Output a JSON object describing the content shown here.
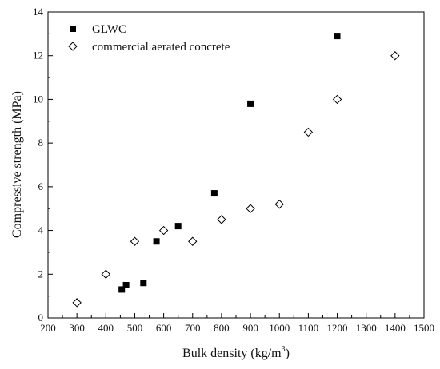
{
  "chart_data": {
    "type": "scatter",
    "xlabel_main": "Bulk density (kg/m",
    "xlabel_sup": "3",
    "xlabel_end": ")",
    "ylabel": "Compressive strength (MPa)",
    "xlim": [
      200,
      1500
    ],
    "ylim": [
      0,
      14
    ],
    "xticks": [
      200,
      300,
      400,
      500,
      600,
      700,
      800,
      900,
      1000,
      1100,
      1200,
      1300,
      1400,
      1500
    ],
    "yticks": [
      0,
      2,
      4,
      6,
      8,
      10,
      12,
      14
    ],
    "legend_position": "top-left",
    "grid": false,
    "series": [
      {
        "name": "GLWC",
        "marker": "filled-square",
        "color": "#000000",
        "points": [
          {
            "x": 455,
            "y": 1.3
          },
          {
            "x": 470,
            "y": 1.5
          },
          {
            "x": 530,
            "y": 1.6
          },
          {
            "x": 575,
            "y": 3.5
          },
          {
            "x": 650,
            "y": 4.2
          },
          {
            "x": 775,
            "y": 5.7
          },
          {
            "x": 900,
            "y": 9.8
          },
          {
            "x": 1200,
            "y": 12.9
          }
        ]
      },
      {
        "name": "commercial aerated concrete",
        "marker": "open-diamond",
        "color": "#000000",
        "points": [
          {
            "x": 300,
            "y": 0.7
          },
          {
            "x": 400,
            "y": 2.0
          },
          {
            "x": 500,
            "y": 3.5
          },
          {
            "x": 600,
            "y": 4.0
          },
          {
            "x": 700,
            "y": 3.5
          },
          {
            "x": 800,
            "y": 4.5
          },
          {
            "x": 900,
            "y": 5.0
          },
          {
            "x": 1000,
            "y": 5.2
          },
          {
            "x": 1100,
            "y": 8.5
          },
          {
            "x": 1200,
            "y": 10.0
          },
          {
            "x": 1400,
            "y": 12.0
          }
        ]
      }
    ]
  }
}
